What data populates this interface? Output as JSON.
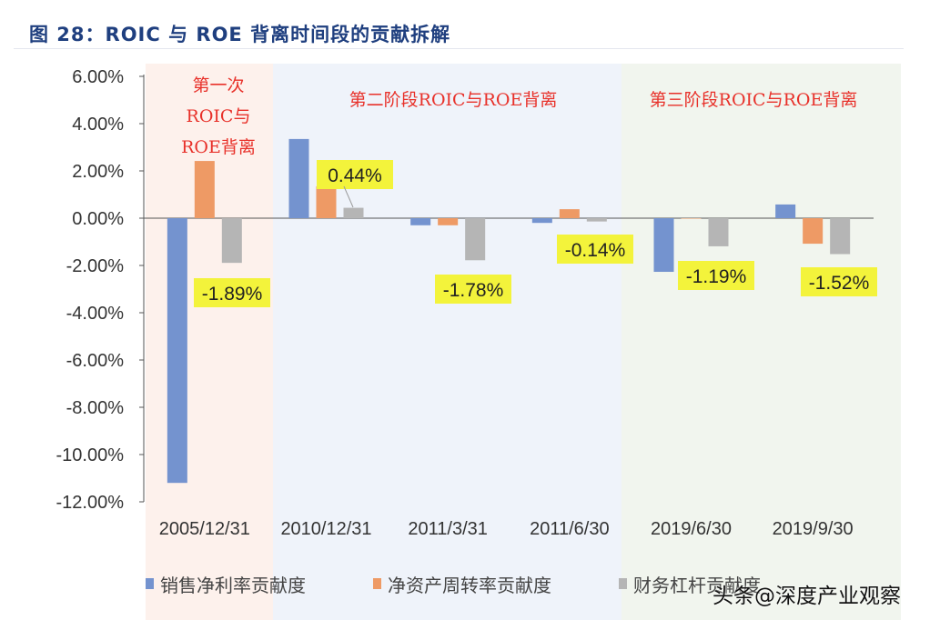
{
  "title": "图 28：ROIC 与 ROE 背离时间段的贡献拆解",
  "watermark": "头条@深度产业观察",
  "chart_data": {
    "type": "bar",
    "categories": [
      "2005/12/31",
      "2010/12/31",
      "2011/3/31",
      "2011/6/30",
      "2019/6/30",
      "2019/9/30"
    ],
    "series": [
      {
        "name": "销售净利率贡献度",
        "color": "#7493cf",
        "values": [
          -11.2,
          3.35,
          -0.3,
          -0.2,
          -2.27,
          0.58
        ]
      },
      {
        "name": "净资产周转率贡献度",
        "color": "#ee9a65",
        "values": [
          2.42,
          1.35,
          -0.3,
          0.38,
          0.0,
          -1.08
        ]
      },
      {
        "name": "财务杠杆贡献度",
        "color": "#b5b5b5",
        "values": [
          -1.89,
          0.44,
          -1.78,
          -0.14,
          -1.19,
          -1.52
        ]
      }
    ],
    "data_labels": [
      "-1.89%",
      "0.44%",
      "-1.78%",
      "-0.14%",
      "-1.19%",
      "-1.52%"
    ],
    "yticks": [
      "6.00%",
      "4.00%",
      "2.00%",
      "0.00%",
      "-2.00%",
      "-4.00%",
      "-6.00%",
      "-8.00%",
      "-10.00%",
      "-12.00%"
    ],
    "ylim": [
      -12,
      6
    ],
    "legend_position": "bottom",
    "phases": [
      {
        "label_lines": [
          "第一次",
          "ROIC与",
          "ROE背离"
        ],
        "color": "#fdf1ec"
      },
      {
        "label_lines": [
          "第二阶段ROIC与ROE背离"
        ],
        "color": "#eff3fa"
      },
      {
        "label_lines": [
          "第三阶段ROIC与ROE背离"
        ],
        "color": "#f1f5ee"
      }
    ]
  }
}
